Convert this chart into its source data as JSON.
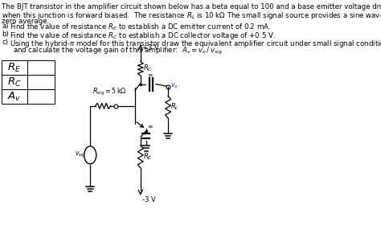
{
  "title_lines": [
    "The BJT transistor in the amplifier circuit shown below has a beta equal to 100 and a base emitter voltage drop of 0.7V",
    "when this junction is forward biased.  The resistance $R_L$ is 10 k$\\Omega$ The small signal source provides a sine wave with",
    "zero average."
  ],
  "item_a": "Find the value of resistance $R_E$ to establish a DC emitter current of 0.2 mA.",
  "item_b": "Find the value of resistance $R_C$ to establish a DC collector voltage of +0.5 V.",
  "item_c1": "Using the hybrid-$\\pi$ model for this transistor draw the equivalent amplifier circuit under small signal conditions",
  "item_c2": "and calculate the voltage gain of this amplifier:  $A_v = v_o\\, /\\, v_{sig}$",
  "table_rows": [
    "$R_E$",
    "$R_C$",
    "$A_v$"
  ],
  "bg_color": "#ffffff",
  "text_color": "#000000",
  "circuit_color": "#000000",
  "label_color_vo": "#1a1aff"
}
